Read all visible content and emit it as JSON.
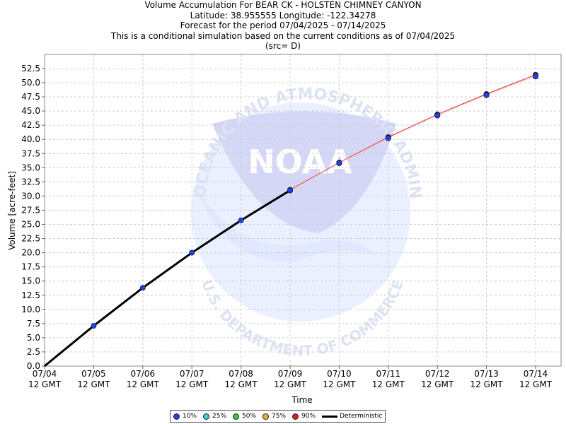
{
  "titles": {
    "line1": "Volume Accumulation For BEAR CK - HOLSTEN CHIMNEY CANYON",
    "line2": "Latitude: 38.955555 Longitude: -122.34278",
    "line3": "Forecast for the period 07/04/2025 - 07/14/2025",
    "line4": "This is a conditional simulation based on the current conditions as of 07/04/2025",
    "line5": "(src= D)"
  },
  "watermark": {
    "arc_top": "NATIONAL OCEANIC AND ATMOSPHERIC ADMINISTRATION",
    "arc_bottom": "U.S. DEPARTMENT OF COMMERCE",
    "logo_text": "NOAA"
  },
  "legend": [
    {
      "label": "10%",
      "color": "#1f3fff"
    },
    {
      "label": "25%",
      "color": "#33d6d6"
    },
    {
      "label": "50%",
      "color": "#33cc33"
    },
    {
      "label": "75%",
      "color": "#f0b030"
    },
    {
      "label": "90%",
      "color": "#e02020"
    },
    {
      "label": "Deterministic",
      "color": "#000000"
    }
  ],
  "chart_data": {
    "type": "line",
    "xlabel": "Time",
    "ylabel": "Volume [acre-feet]",
    "xlim": [
      0,
      10
    ],
    "ylim": [
      0,
      55
    ],
    "grid": true,
    "legend_position": "bottom",
    "x_ticks": [
      {
        "top": "07/04",
        "bottom": "12 GMT"
      },
      {
        "top": "07/05",
        "bottom": "12 GMT"
      },
      {
        "top": "07/06",
        "bottom": "12 GMT"
      },
      {
        "top": "07/07",
        "bottom": "12 GMT"
      },
      {
        "top": "07/08",
        "bottom": "12 GMT"
      },
      {
        "top": "07/09",
        "bottom": "12 GMT"
      },
      {
        "top": "07/10",
        "bottom": "12 GMT"
      },
      {
        "top": "07/11",
        "bottom": "12 GMT"
      },
      {
        "top": "07/12",
        "bottom": "12 GMT"
      },
      {
        "top": "07/13",
        "bottom": "12 GMT"
      },
      {
        "top": "07/14",
        "bottom": "12 GMT"
      }
    ],
    "y_ticks": [
      "0.0",
      "2.5",
      "5.0",
      "7.5",
      "10.0",
      "12.5",
      "15.0",
      "17.5",
      "20.0",
      "22.5",
      "25.0",
      "27.5",
      "30.0",
      "32.5",
      "35.0",
      "37.5",
      "40.0",
      "42.5",
      "45.0",
      "47.5",
      "50.0",
      "52.5"
    ],
    "deterministic": {
      "name": "Deterministic",
      "color": "#000000",
      "x": [
        0,
        1,
        2,
        3,
        4,
        5
      ],
      "y": [
        0.0,
        7.1,
        13.8,
        20.0,
        25.7,
        31.0
      ]
    },
    "series": [
      {
        "name": "90%",
        "color": "#e02020",
        "x": [
          5,
          6,
          7,
          8,
          9,
          10
        ],
        "y": [
          31.1,
          35.9,
          40.4,
          44.4,
          48.0,
          51.4
        ]
      },
      {
        "name": "75%",
        "color": "#f0b030",
        "x": [
          5,
          6,
          7,
          8,
          9,
          10
        ],
        "y": [
          31.0,
          35.9,
          40.3,
          44.3,
          47.9,
          51.2
        ]
      },
      {
        "name": "50%",
        "color": "#33cc33",
        "x": [
          5,
          6,
          7,
          8,
          9,
          10
        ],
        "y": [
          31.0,
          35.8,
          40.3,
          44.3,
          47.8,
          51.2
        ]
      },
      {
        "name": "25%",
        "color": "#33d6d6",
        "x": [
          5,
          6,
          7,
          8,
          9,
          10
        ],
        "y": [
          31.0,
          35.8,
          40.2,
          44.2,
          47.8,
          51.1
        ]
      },
      {
        "name": "10%",
        "color": "#1f3fff",
        "x": [
          1,
          2,
          3,
          4,
          5,
          6,
          7,
          8,
          9,
          10
        ],
        "y": [
          7.1,
          13.8,
          20.0,
          25.7,
          31.0,
          35.8,
          40.2,
          44.2,
          47.8,
          51.1
        ]
      }
    ]
  }
}
